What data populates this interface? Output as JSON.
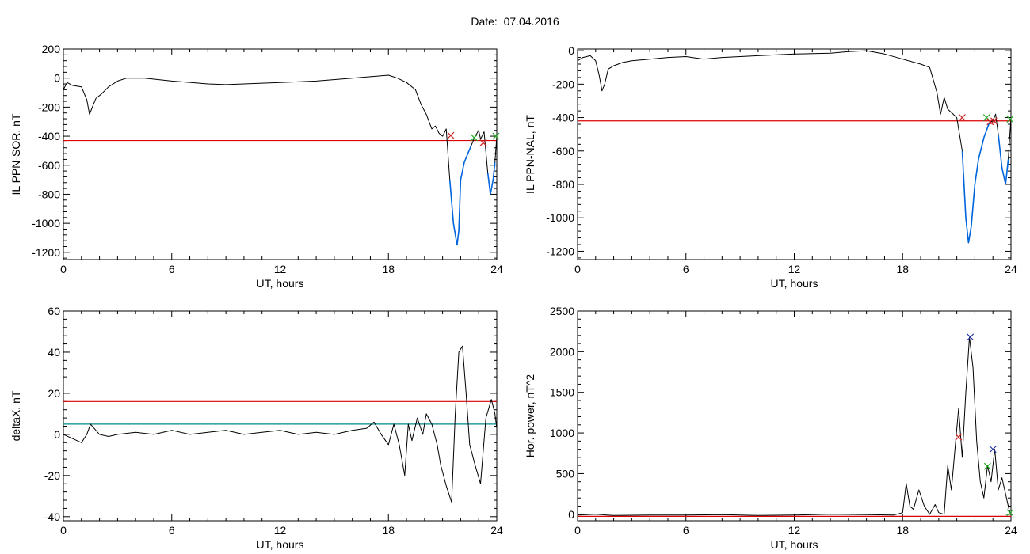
{
  "figure": {
    "date_label": "Date:",
    "date_value": "07.04.2016"
  },
  "colors": {
    "trace": "#000000",
    "threshold": "#dd0000",
    "below": "#0066dd",
    "baseline": "#008888",
    "marker_red": "#cc2222",
    "marker_green": "#22aa22",
    "marker_blue": "#2233aa"
  },
  "chart_data": [
    {
      "type": "line",
      "ylabel": "IL PPN-SOR, nT",
      "xlabel": "UT, hours",
      "xlim": [
        0,
        24
      ],
      "ylim": [
        -1250,
        200
      ],
      "xticks": [
        "0",
        "6",
        "12",
        "18",
        "24"
      ],
      "yticks": [
        "200",
        "0",
        "-200",
        "-400",
        "-600",
        "-800",
        "-1000",
        "-1200"
      ],
      "threshold": -430,
      "series": [
        {
          "x": [
            0,
            0.2,
            0.5,
            1.0,
            1.3,
            1.45,
            1.6,
            1.8,
            2.1,
            2.5,
            3.0,
            3.5,
            4.5,
            6,
            8,
            9,
            10,
            12,
            14,
            16,
            17,
            18,
            18.5,
            19,
            19.5,
            19.8,
            20.1,
            20.4,
            20.6,
            20.8,
            21.0,
            21.2,
            21.4,
            21.6,
            21.8,
            21.9,
            22.0,
            22.2,
            22.4,
            22.6,
            22.8,
            23.0,
            23.1,
            23.3,
            23.5,
            23.65,
            23.8,
            23.9,
            24.0
          ],
          "y": [
            -80,
            -30,
            -50,
            -60,
            -150,
            -250,
            -200,
            -140,
            -110,
            -60,
            -20,
            0,
            0,
            -20,
            -40,
            -45,
            -40,
            -30,
            -20,
            0,
            10,
            20,
            0,
            -30,
            -80,
            -180,
            -250,
            -350,
            -330,
            -380,
            -400,
            -350,
            -700,
            -1000,
            -1150,
            -1050,
            -700,
            -580,
            -520,
            -460,
            -400,
            -360,
            -420,
            -370,
            -650,
            -800,
            -700,
            -580,
            -400
          ]
        }
      ],
      "markers": [
        {
          "x": 21.45,
          "y": -395,
          "color": "red"
        },
        {
          "x": 22.75,
          "y": -410,
          "color": "green"
        },
        {
          "x": 23.25,
          "y": -445,
          "color": "red"
        },
        {
          "x": 23.95,
          "y": -400,
          "color": "green"
        }
      ]
    },
    {
      "type": "line",
      "ylabel": "IL PPN-NAL, nT",
      "xlabel": "UT, hours",
      "xlim": [
        0,
        24
      ],
      "ylim": [
        -1250,
        10
      ],
      "xticks": [
        "0",
        "6",
        "12",
        "18",
        "24"
      ],
      "yticks": [
        "0",
        "-200",
        "-400",
        "-600",
        "-800",
        "-1000",
        "-1200"
      ],
      "threshold": -420,
      "series": [
        {
          "x": [
            0,
            0.3,
            0.7,
            1.0,
            1.2,
            1.35,
            1.5,
            1.7,
            2.0,
            2.5,
            3,
            4,
            5,
            6,
            7,
            8,
            10,
            12,
            14,
            15,
            16,
            17,
            18,
            19,
            19.5,
            19.9,
            20.1,
            20.3,
            20.5,
            20.8,
            21.0,
            21.3,
            21.5,
            21.65,
            21.8,
            22.0,
            22.2,
            22.5,
            22.8,
            23.0,
            23.15,
            23.3,
            23.5,
            23.7,
            23.85,
            24.0
          ],
          "y": [
            -60,
            -40,
            -30,
            -60,
            -150,
            -240,
            -200,
            -110,
            -90,
            -70,
            -60,
            -50,
            -40,
            -35,
            -50,
            -40,
            -30,
            -20,
            -15,
            -5,
            0,
            -20,
            -50,
            -80,
            -100,
            -250,
            -380,
            -280,
            -350,
            -380,
            -400,
            -600,
            -1000,
            -1150,
            -1050,
            -800,
            -650,
            -520,
            -430,
            -420,
            -380,
            -500,
            -700,
            -800,
            -650,
            -400
          ]
        }
      ],
      "markers": [
        {
          "x": 21.3,
          "y": -400,
          "color": "red"
        },
        {
          "x": 22.65,
          "y": -400,
          "color": "green"
        },
        {
          "x": 22.85,
          "y": -425,
          "color": "red"
        },
        {
          "x": 23.05,
          "y": -420,
          "color": "red"
        },
        {
          "x": 23.95,
          "y": -410,
          "color": "green"
        }
      ]
    },
    {
      "type": "line",
      "ylabel": "deltaX, nT",
      "xlabel": "UT, hours",
      "xlim": [
        0,
        24
      ],
      "ylim": [
        -42,
        60
      ],
      "xticks": [
        "0",
        "6",
        "12",
        "18",
        "24"
      ],
      "yticks": [
        "60",
        "40",
        "20",
        "0",
        "-20",
        "-40"
      ],
      "threshold": 16,
      "baseline": 5,
      "series": [
        {
          "x": [
            0,
            0.5,
            1.0,
            1.3,
            1.5,
            1.7,
            2.0,
            2.5,
            3,
            4,
            5,
            6,
            7,
            8,
            9,
            10,
            11,
            12,
            13,
            14,
            15,
            16,
            16.8,
            17.2,
            17.6,
            18.0,
            18.3,
            18.6,
            18.9,
            19.1,
            19.3,
            19.6,
            19.9,
            20.1,
            20.4,
            20.7,
            20.9,
            21.2,
            21.5,
            21.7,
            21.9,
            22.1,
            22.3,
            22.5,
            22.8,
            23.1,
            23.4,
            23.7,
            23.9,
            24.0
          ],
          "y": [
            0,
            -2,
            -4,
            0,
            5,
            3,
            0,
            -1,
            0,
            1,
            0,
            2,
            0,
            1,
            2,
            0,
            1,
            2,
            0,
            1,
            0,
            2,
            3,
            6,
            0,
            -5,
            5,
            -5,
            -20,
            5,
            -3,
            8,
            0,
            10,
            5,
            -5,
            -15,
            -25,
            -33,
            10,
            40,
            43,
            20,
            -5,
            -15,
            -24,
            8,
            17,
            10,
            3
          ]
        }
      ]
    },
    {
      "type": "line",
      "ylabel": "Hor. power, nT^2",
      "xlabel": "UT, hours",
      "xlim": [
        0,
        24
      ],
      "ylim": [
        -80,
        2500
      ],
      "xticks": [
        "0",
        "6",
        "12",
        "18",
        "24"
      ],
      "yticks": [
        "2500",
        "2000",
        "1500",
        "1000",
        "500",
        "0"
      ],
      "threshold": -25,
      "series": [
        {
          "x": [
            0,
            1,
            2,
            4,
            6,
            8,
            10,
            12,
            14,
            16,
            17.5,
            18.0,
            18.2,
            18.4,
            18.6,
            18.9,
            19.2,
            19.5,
            19.8,
            20.0,
            20.3,
            20.5,
            20.7,
            20.9,
            21.1,
            21.3,
            21.5,
            21.7,
            21.9,
            22.1,
            22.3,
            22.5,
            22.7,
            22.9,
            23.1,
            23.3,
            23.5,
            23.7,
            23.9,
            24.0
          ],
          "y": [
            -10,
            0,
            -15,
            -10,
            -10,
            -5,
            -15,
            -10,
            0,
            -5,
            -10,
            20,
            380,
            100,
            60,
            300,
            100,
            0,
            120,
            20,
            0,
            600,
            300,
            800,
            1300,
            700,
            1500,
            2180,
            1800,
            900,
            400,
            200,
            600,
            400,
            800,
            300,
            450,
            250,
            50,
            0
          ]
        }
      ],
      "markers": [
        {
          "x": 21.1,
          "y": 950,
          "color": "red"
        },
        {
          "x": 21.75,
          "y": 2180,
          "color": "blue"
        },
        {
          "x": 22.7,
          "y": 590,
          "color": "green"
        },
        {
          "x": 23.0,
          "y": 800,
          "color": "blue"
        },
        {
          "x": 23.95,
          "y": 20,
          "color": "green"
        }
      ]
    }
  ]
}
